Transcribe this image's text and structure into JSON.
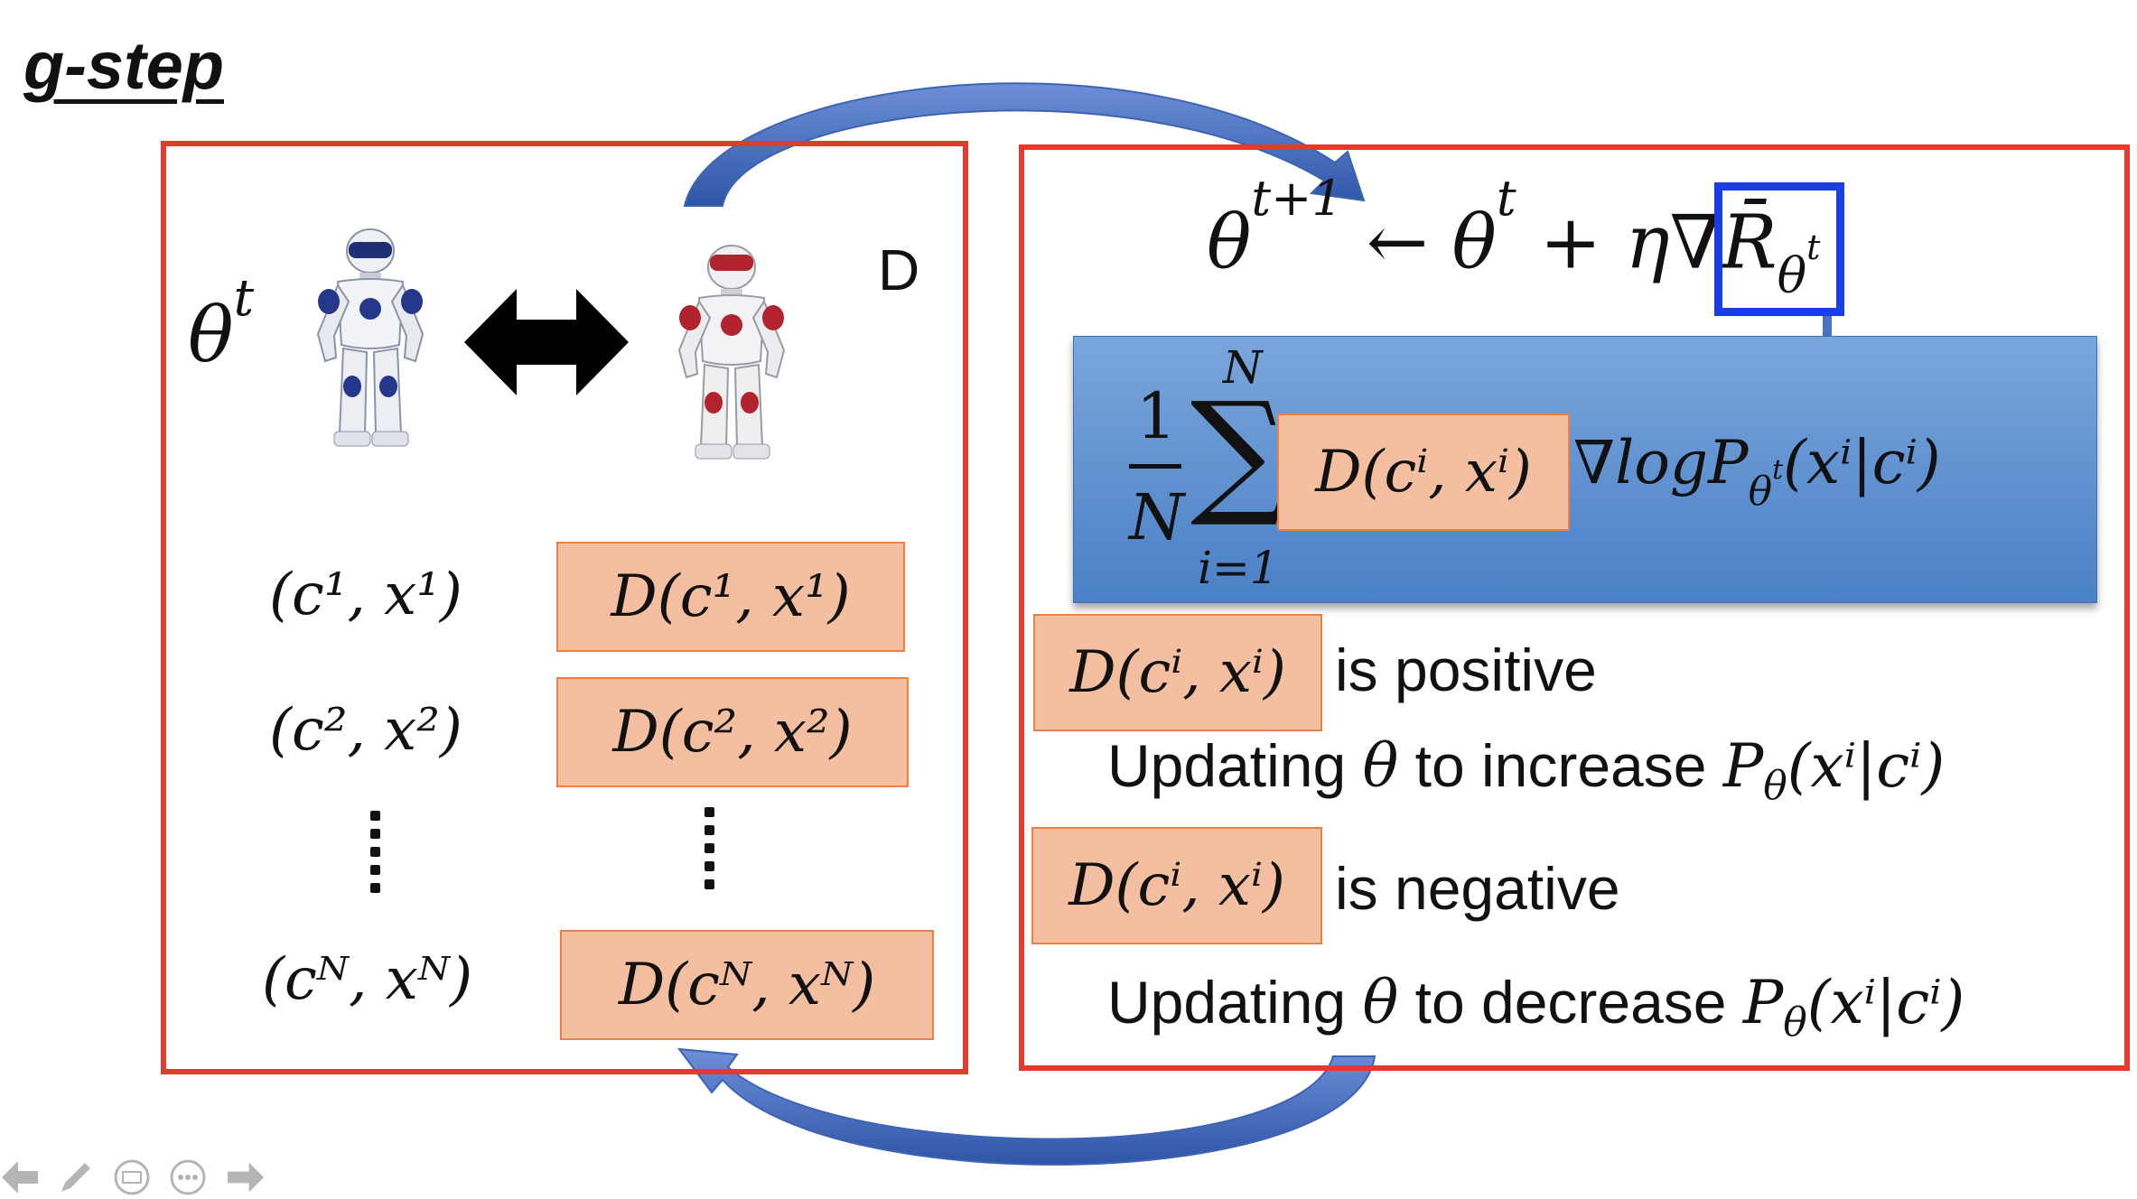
{
  "slide": {
    "title": "g-step",
    "left_panel": {
      "generator_label": "θ",
      "generator_sup": "t",
      "discriminator_label": "D",
      "pairs": [
        {
          "pair": "(c¹, x¹)",
          "score": "D(c¹, x¹)"
        },
        {
          "pair": "(c², x²)",
          "score": "D(c², x²)"
        },
        {
          "pair": "(cᴺ, xᴺ)",
          "score": "D(cᴺ, xᴺ)"
        }
      ]
    },
    "right_panel": {
      "update_rule": {
        "lhs": "θ",
        "lhs_sup": "t+1",
        "arrow": " ← ",
        "theta": "θ",
        "theta_sup": "t",
        "plus_eta": " + η",
        "grad_r": "∇R̄",
        "grad_sub": "θ",
        "grad_sub_sup": "t"
      },
      "gradient_estimate": {
        "frac_num": "1",
        "frac_den": "N",
        "sum_top": "N",
        "sum_sign": "∑",
        "sum_bottom": "i=1",
        "d_term": "D(cⁱ, xⁱ)",
        "log_term": "∇logP",
        "log_sub": "θ",
        "log_sub_sup": "t",
        "log_arg": "(xⁱ|cⁱ)"
      },
      "cases": [
        {
          "d_term": "D(cⁱ, xⁱ)",
          "condition": "is positive",
          "update_prefix": "Updating ",
          "theta": "θ",
          "update_mid": " to increase ",
          "prob": "P",
          "prob_sub": "θ",
          "prob_arg": "(xⁱ|cⁱ)"
        },
        {
          "d_term": "D(cⁱ, xⁱ)",
          "condition": "is negative",
          "update_prefix": "Updating ",
          "theta": "θ",
          "update_mid": " to decrease ",
          "prob": "P",
          "prob_sub": "θ",
          "prob_arg": "(xⁱ|cⁱ)"
        }
      ]
    }
  },
  "toolbar": {
    "icons": [
      "prev-arrow-icon",
      "pen-icon",
      "subtitles-icon",
      "more-icon",
      "next-arrow-icon"
    ]
  },
  "colors": {
    "panel_border": "#e23b2e",
    "score_fill": "#f3bfa0",
    "score_border": "#ee7f45",
    "gradient_panel": "#5b8fd0",
    "highlight_box": "#1a3ee6",
    "flow_arrow": "#4a72c0"
  }
}
